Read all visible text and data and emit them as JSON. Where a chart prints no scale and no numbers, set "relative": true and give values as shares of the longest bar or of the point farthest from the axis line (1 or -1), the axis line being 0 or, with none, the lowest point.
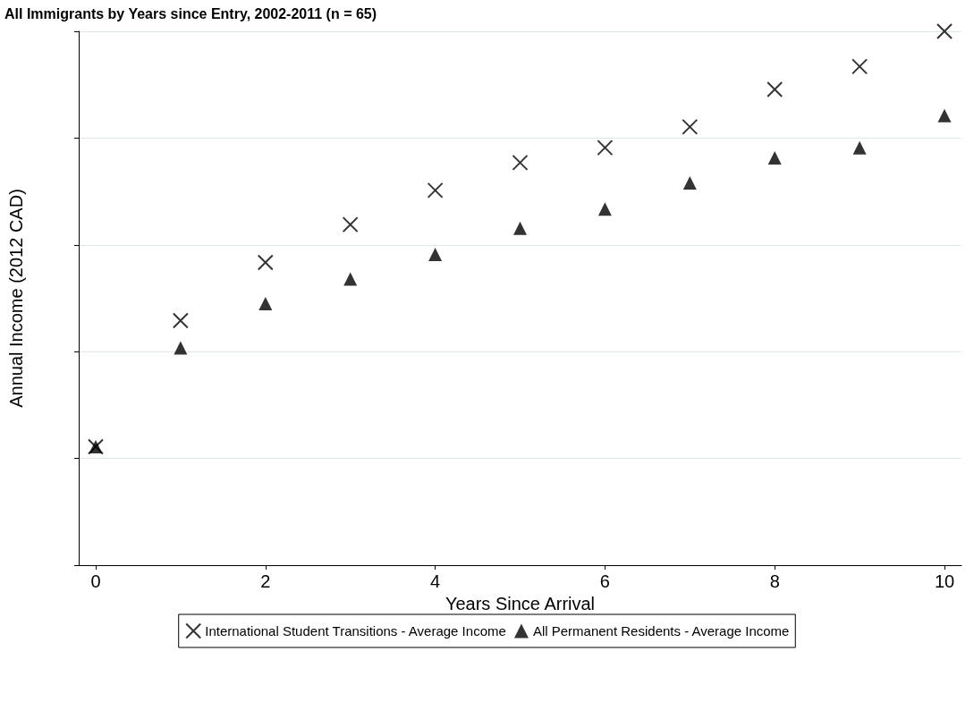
{
  "chart_data": {
    "type": "scatter",
    "title": "All Immigrants by Years since Entry, 2002-2011 (n = 65)",
    "xlabel": "Years Since Arrival",
    "ylabel": "Annual Income (2012 CAD)",
    "relative": true,
    "x": [
      0,
      1,
      2,
      3,
      4,
      5,
      6,
      7,
      8,
      9,
      10
    ],
    "xlim": [
      -0.2,
      10.2
    ],
    "xticks": [
      0,
      2,
      4,
      6,
      8,
      10
    ],
    "grid": "y",
    "legend": "bottom",
    "series": [
      {
        "name": "International Student Transitions - Average Income",
        "color": "#000000",
        "marker": "cross",
        "values": [
          0.222,
          0.458,
          0.567,
          0.638,
          0.702,
          0.754,
          0.782,
          0.821,
          0.891,
          0.934,
          1
        ]
      },
      {
        "name": "All Permanent Residents - Average Income",
        "color": "#000000",
        "marker": "triangle",
        "values": [
          0.222,
          0.407,
          0.49,
          0.536,
          0.582,
          0.631,
          0.667,
          0.716,
          0.763,
          0.782,
          0.842
        ]
      }
    ]
  }
}
